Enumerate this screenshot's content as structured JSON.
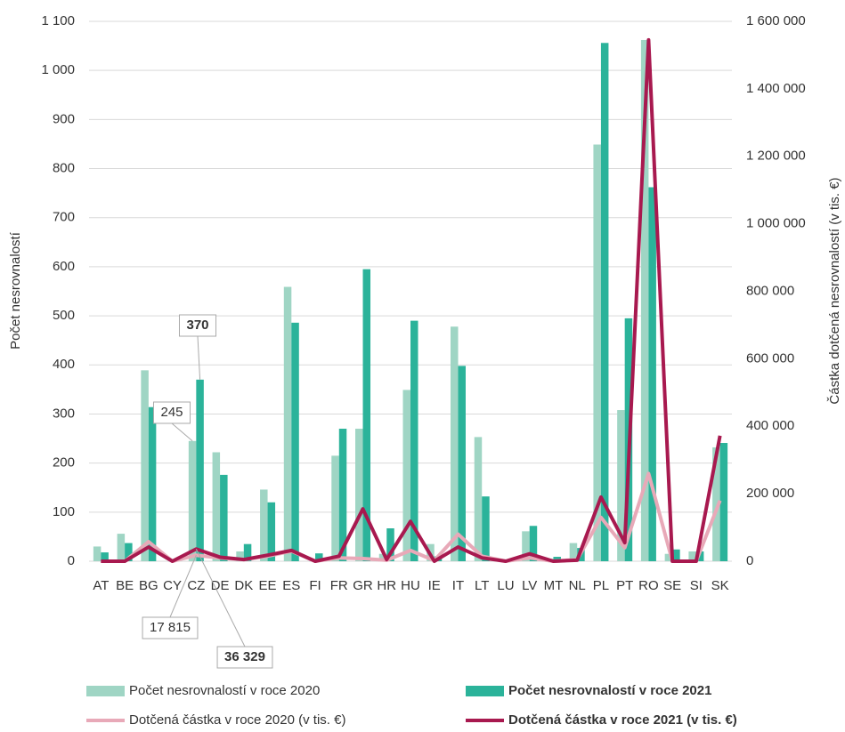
{
  "chart_data": {
    "type": "bar_line",
    "y_label": "Počet nesrovnalostí",
    "y2_label": "Částka dotčená nesrovnalostí (v tis. €)",
    "categories": [
      "AT",
      "BE",
      "BG",
      "CY",
      "CZ",
      "DE",
      "DK",
      "EE",
      "ES",
      "FI",
      "FR",
      "GR",
      "HR",
      "HU",
      "IE",
      "IT",
      "LT",
      "LU",
      "LV",
      "MT",
      "NL",
      "PL",
      "PT",
      "RO",
      "SE",
      "SI",
      "SK"
    ],
    "series": [
      {
        "name": "Počet nesrovnalostí v roce 2020",
        "type": "bar",
        "color": "#9fd5c4",
        "values": [
          30,
          56,
          389,
          0,
          245,
          222,
          20,
          146,
          559,
          0,
          215,
          270,
          15,
          349,
          35,
          478,
          253,
          0,
          61,
          5,
          37,
          849,
          308,
          1062,
          15,
          20,
          232
        ],
        "value_labels": [
          null,
          null,
          null,
          null,
          "245",
          null,
          null,
          null,
          null,
          null,
          null,
          null,
          null,
          null,
          null,
          null,
          null,
          null,
          null,
          null,
          null,
          null,
          null,
          null,
          null,
          null,
          null
        ]
      },
      {
        "name": "Počet nesrovnalostí v roce 2021",
        "type": "bar",
        "color": "#2bb39a",
        "values": [
          18,
          37,
          314,
          2,
          370,
          176,
          35,
          120,
          486,
          16,
          270,
          595,
          67,
          490,
          10,
          398,
          132,
          0,
          72,
          9,
          27,
          1056,
          495,
          762,
          24,
          20,
          241
        ],
        "value_labels": [
          null,
          null,
          null,
          null,
          "370",
          null,
          null,
          null,
          null,
          null,
          null,
          null,
          null,
          null,
          null,
          null,
          null,
          null,
          null,
          null,
          null,
          null,
          null,
          null,
          null,
          null,
          null
        ]
      },
      {
        "name": "Dotčená částka v roce 2020 (v tis. €)",
        "type": "line",
        "axis": "y2",
        "color": "#e8a9b8",
        "values": [
          0,
          0,
          58000,
          0,
          17815,
          10000,
          5000,
          15000,
          30000,
          0,
          10000,
          8000,
          3000,
          32000,
          2000,
          80000,
          15000,
          0,
          10000,
          0,
          5000,
          130000,
          40000,
          260000,
          0,
          0,
          180000
        ],
        "value_labels": [
          null,
          null,
          null,
          null,
          "17 815",
          null,
          null,
          null,
          null,
          null,
          null,
          null,
          null,
          null,
          null,
          null,
          null,
          null,
          null,
          null,
          null,
          null,
          null,
          null,
          null,
          null,
          null
        ]
      },
      {
        "name": "Dotčená částka v roce 2021 (v tis. €)",
        "type": "line",
        "axis": "y2",
        "color": "#a8194f",
        "values": [
          0,
          0,
          42000,
          0,
          36329,
          12000,
          5000,
          18000,
          32000,
          0,
          15000,
          155000,
          5000,
          118000,
          0,
          42000,
          10000,
          0,
          22000,
          0,
          3000,
          190000,
          55000,
          1545000,
          0,
          0,
          372000
        ],
        "value_labels": [
          null,
          null,
          null,
          null,
          "36 329",
          null,
          null,
          null,
          null,
          null,
          null,
          null,
          null,
          null,
          null,
          null,
          null,
          null,
          null,
          null,
          null,
          null,
          null,
          null,
          null,
          null,
          null
        ]
      }
    ],
    "ylim": [
      0,
      1100
    ],
    "yticks": [
      0,
      100,
      200,
      300,
      400,
      500,
      600,
      700,
      800,
      900,
      {
        "value": 1000,
        "label": "1 000"
      },
      {
        "value": 1100,
        "label": "1 100"
      }
    ],
    "y2lim": [
      0,
      1600000
    ],
    "y2ticks": [
      0,
      {
        "value": 200000,
        "label": "200 000"
      },
      {
        "value": 400000,
        "label": "400 000"
      },
      {
        "value": 600000,
        "label": "600 000"
      },
      {
        "value": 800000,
        "label": "800 000"
      },
      {
        "value": 1000000,
        "label": "1 000 000"
      },
      {
        "value": 1200000,
        "label": "1 200 000"
      },
      {
        "value": 1400000,
        "label": "1 400 000"
      },
      {
        "value": 1600000,
        "label": "1 600 000"
      }
    ],
    "grid": true,
    "legend": "bottom"
  }
}
